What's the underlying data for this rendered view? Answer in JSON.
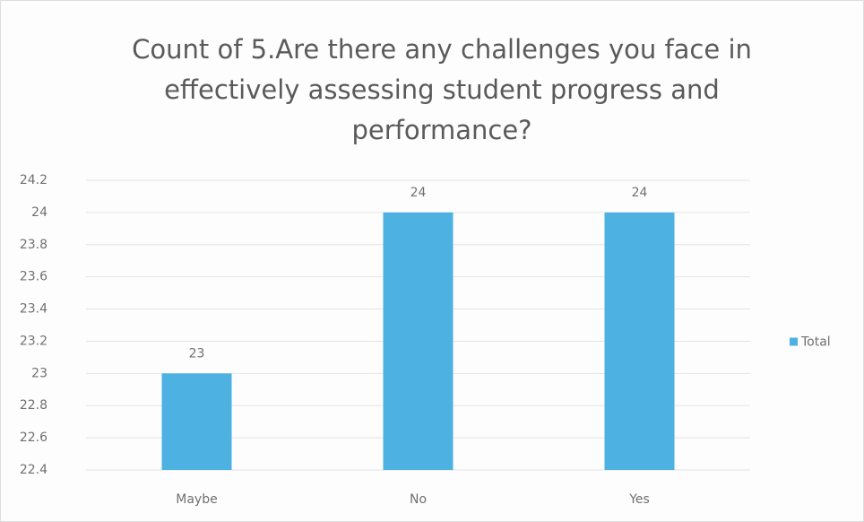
{
  "chart_data": {
    "type": "bar",
    "title": "Count of 5.Are there any challenges you face in effectively assessing student progress and performance?",
    "categories": [
      "Maybe",
      "No",
      "Yes"
    ],
    "series": [
      {
        "name": "Total",
        "color": "#4db1e2",
        "values": [
          23,
          24,
          24
        ]
      }
    ],
    "ylim": [
      22.4,
      24.2
    ],
    "yticks": [
      22.4,
      22.6,
      22.8,
      23,
      23.2,
      23.4,
      23.6,
      23.8,
      24,
      24.2
    ],
    "grid": true,
    "legend": "right"
  }
}
